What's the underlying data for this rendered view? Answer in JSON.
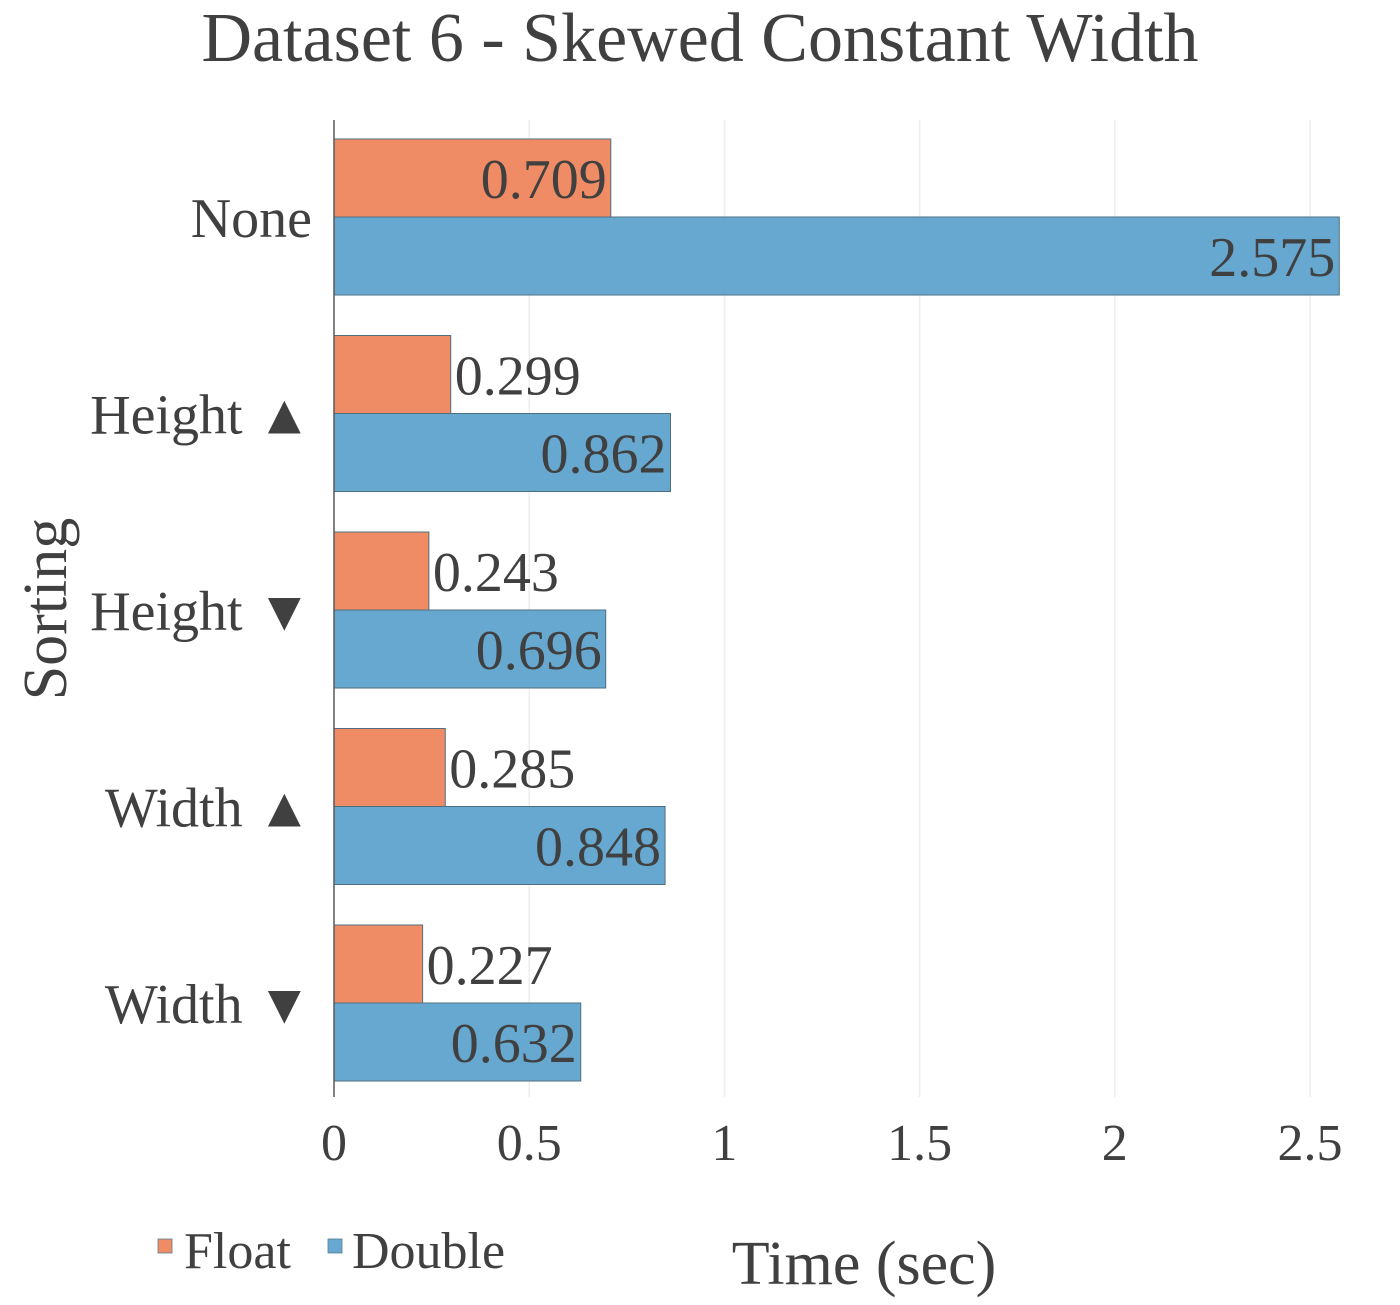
{
  "chart_data": {
    "type": "bar",
    "orientation": "horizontal",
    "title": "Dataset 6 - Skewed Constant Width",
    "xlabel": "Time (sec)",
    "ylabel": "Sorting",
    "categories": [
      "None",
      "Height ▲",
      "Height ▼",
      "Width ▲",
      "Width ▼"
    ],
    "series": [
      {
        "name": "Float",
        "color": "#f08c65",
        "values": [
          0.709,
          0.299,
          0.243,
          0.285,
          0.227
        ],
        "labels": [
          "0.709",
          "0.299",
          "0.243",
          "0.285",
          "0.227"
        ]
      },
      {
        "name": "Double",
        "color": "#67a8d0",
        "values": [
          2.575,
          0.862,
          0.696,
          0.848,
          0.632
        ],
        "labels": [
          "2.575",
          "0.862",
          "0.696",
          "0.848",
          "0.632"
        ]
      }
    ],
    "xlim": [
      0,
      2.5
    ],
    "xticks": [
      0,
      0.5,
      1,
      1.5,
      2,
      2.5
    ],
    "xtick_labels": [
      "0",
      "0.5",
      "1",
      "1.5",
      "2",
      "2.5"
    ],
    "grid": "vertical",
    "legend_position": "bottom-left"
  }
}
